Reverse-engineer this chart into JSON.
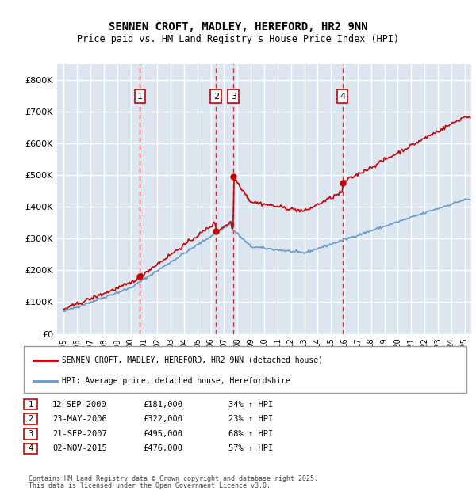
{
  "title": "SENNEN CROFT, MADLEY, HEREFORD, HR2 9NN",
  "subtitle": "Price paid vs. HM Land Registry's House Price Index (HPI)",
  "legend_line1": "SENNEN CROFT, MADLEY, HEREFORD, HR2 9NN (detached house)",
  "legend_line2": "HPI: Average price, detached house, Herefordshire",
  "footer_line1": "Contains HM Land Registry data © Crown copyright and database right 2025.",
  "footer_line2": "This data is licensed under the Open Government Licence v3.0.",
  "transactions": [
    {
      "num": 1,
      "date": "12-SEP-2000",
      "price": "£181,000",
      "change": "34% ↑ HPI",
      "year": 2000.7
    },
    {
      "num": 2,
      "date": "23-MAY-2006",
      "price": "£322,000",
      "change": "23% ↑ HPI",
      "year": 2006.4
    },
    {
      "num": 3,
      "date": "21-SEP-2007",
      "price": "£495,000",
      "change": "68% ↑ HPI",
      "year": 2007.7
    },
    {
      "num": 4,
      "date": "02-NOV-2015",
      "price": "£476,000",
      "change": "57% ↑ HPI",
      "year": 2015.85
    }
  ],
  "transaction_values": [
    181000,
    322000,
    495000,
    476000
  ],
  "background_color": "#dce6f1",
  "plot_bg_color": "#dce6f1",
  "line_color_red": "#cc0000",
  "line_color_blue": "#6699cc",
  "vline_color": "#cc0000",
  "grid_color": "#ffffff",
  "ylim": [
    0,
    850000
  ],
  "yticks": [
    0,
    100000,
    200000,
    300000,
    400000,
    500000,
    600000,
    700000,
    800000
  ],
  "ytick_labels": [
    "£0",
    "£100K",
    "£200K",
    "£300K",
    "£400K",
    "£500K",
    "£600K",
    "£700K",
    "£800K"
  ],
  "xlim_start": 1994.5,
  "xlim_end": 2025.5
}
